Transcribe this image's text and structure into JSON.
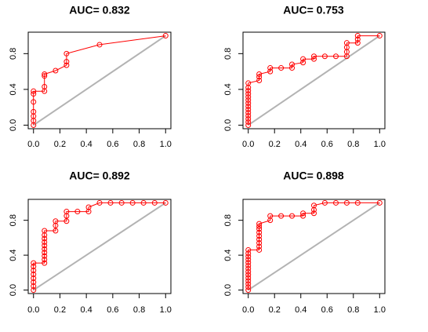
{
  "chart_data": [
    {
      "type": "line",
      "title": "AUC= 0.832",
      "xlim": [
        0,
        1
      ],
      "ylim": [
        0,
        1
      ],
      "xticks": [
        "0.0",
        "0.2",
        "0.4",
        "0.6",
        "0.8",
        "1.0"
      ],
      "yticks": [
        "0.0",
        "0.4",
        "0.8"
      ],
      "diagonal": [
        [
          0,
          0
        ],
        [
          1,
          1
        ]
      ],
      "series": [
        {
          "color": "#ff0000",
          "x": [
            0,
            0,
            0,
            0,
            0,
            0,
            0,
            0.083,
            0.083,
            0.083,
            0.083,
            0.167,
            0.25,
            0.25,
            0.25,
            0.5,
            1
          ],
          "y": [
            0,
            0.05,
            0.1,
            0.15,
            0.26,
            0.35,
            0.38,
            0.38,
            0.43,
            0.55,
            0.57,
            0.61,
            0.67,
            0.71,
            0.8,
            0.9,
            1
          ]
        }
      ]
    },
    {
      "type": "line",
      "title": "AUC= 0.753",
      "xlim": [
        0,
        1
      ],
      "ylim": [
        0,
        1
      ],
      "xticks": [
        "0.0",
        "0.2",
        "0.4",
        "0.6",
        "0.8",
        "1.0"
      ],
      "yticks": [
        "0.0",
        "0.4",
        "0.8"
      ],
      "diagonal": [
        [
          0,
          0
        ],
        [
          1,
          1
        ]
      ],
      "series": [
        {
          "color": "#ff0000",
          "x": [
            0,
            0,
            0,
            0,
            0,
            0,
            0,
            0,
            0,
            0,
            0,
            0,
            0,
            0,
            0.083,
            0.083,
            0.083,
            0.167,
            0.167,
            0.25,
            0.333,
            0.333,
            0.417,
            0.417,
            0.5,
            0.5,
            0.583,
            0.667,
            0.75,
            0.75,
            0.75,
            0.75,
            0.833,
            0.833,
            0.833,
            1
          ],
          "y": [
            0,
            0.035,
            0.07,
            0.105,
            0.14,
            0.175,
            0.21,
            0.245,
            0.28,
            0.315,
            0.35,
            0.385,
            0.42,
            0.47,
            0.5,
            0.54,
            0.57,
            0.6,
            0.64,
            0.64,
            0.64,
            0.68,
            0.7,
            0.74,
            0.74,
            0.77,
            0.77,
            0.77,
            0.77,
            0.82,
            0.87,
            0.92,
            0.92,
            0.96,
            1,
            1
          ]
        }
      ]
    },
    {
      "type": "line",
      "title": "AUC= 0.892",
      "xlim": [
        0,
        1
      ],
      "ylim": [
        0,
        1
      ],
      "xticks": [
        "0.0",
        "0.2",
        "0.4",
        "0.6",
        "0.8",
        "1.0"
      ],
      "yticks": [
        "0.0",
        "0.4",
        "0.8"
      ],
      "diagonal": [
        [
          0,
          0
        ],
        [
          1,
          1
        ]
      ],
      "series": [
        {
          "color": "#ff0000",
          "x": [
            0,
            0,
            0,
            0,
            0,
            0,
            0,
            0,
            0.083,
            0.083,
            0.083,
            0.083,
            0.083,
            0.083,
            0.083,
            0.083,
            0.083,
            0.083,
            0.167,
            0.167,
            0.167,
            0.25,
            0.25,
            0.25,
            0.333,
            0.417,
            0.417,
            0.5,
            0.583,
            0.667,
            0.75,
            0.833,
            0.917,
            1
          ],
          "y": [
            0,
            0.045,
            0.09,
            0.135,
            0.18,
            0.225,
            0.27,
            0.31,
            0.31,
            0.35,
            0.39,
            0.43,
            0.47,
            0.51,
            0.55,
            0.59,
            0.63,
            0.68,
            0.68,
            0.74,
            0.79,
            0.79,
            0.85,
            0.9,
            0.9,
            0.9,
            0.95,
            1,
            1,
            1,
            1,
            1,
            1,
            1
          ]
        }
      ]
    },
    {
      "type": "line",
      "title": "AUC= 0.898",
      "xlim": [
        0,
        1
      ],
      "ylim": [
        0,
        1
      ],
      "xticks": [
        "0.0",
        "0.2",
        "0.4",
        "0.6",
        "0.8",
        "1.0"
      ],
      "yticks": [
        "0.0",
        "0.4",
        "0.8"
      ],
      "diagonal": [
        [
          0,
          0
        ],
        [
          1,
          1
        ]
      ],
      "series": [
        {
          "color": "#ff0000",
          "x": [
            0,
            0,
            0,
            0,
            0,
            0,
            0,
            0,
            0,
            0,
            0,
            0,
            0,
            0,
            0.083,
            0.083,
            0.083,
            0.083,
            0.083,
            0.083,
            0.083,
            0.083,
            0.083,
            0.167,
            0.167,
            0.25,
            0.333,
            0.417,
            0.417,
            0.5,
            0.5,
            0.5,
            0.583,
            0.667,
            0.75,
            0.833,
            1
          ],
          "y": [
            0,
            0.035,
            0.07,
            0.105,
            0.14,
            0.175,
            0.21,
            0.245,
            0.28,
            0.315,
            0.35,
            0.385,
            0.42,
            0.46,
            0.46,
            0.5,
            0.54,
            0.58,
            0.62,
            0.66,
            0.7,
            0.73,
            0.76,
            0.8,
            0.85,
            0.85,
            0.85,
            0.85,
            0.88,
            0.88,
            0.92,
            0.97,
            1,
            1,
            1,
            1,
            1
          ]
        }
      ]
    }
  ]
}
